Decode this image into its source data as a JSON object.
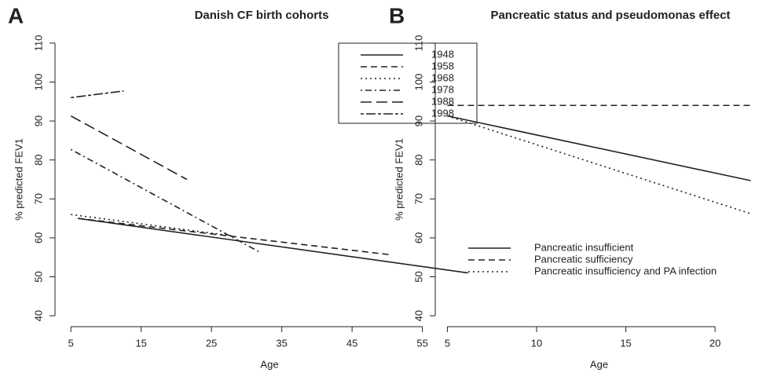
{
  "chart_data": [
    {
      "type": "line",
      "panel": "A",
      "title": "Danish CF birth cohorts",
      "xlabel": "Age",
      "ylabel": "% predicted FEV1",
      "xlim": [
        2.74,
        63.76
      ],
      "xticks": [
        5,
        15,
        25,
        35,
        45,
        55
      ],
      "ylim": [
        37.2,
        112.8
      ],
      "yticks": [
        40,
        50,
        60,
        70,
        80,
        90,
        100,
        110
      ],
      "legend": "topright",
      "legend_box": true,
      "series": [
        {
          "name": "1948",
          "color": "#222222",
          "linestyle": "solid",
          "x": [
            6,
            61.5
          ],
          "values": [
            65,
            51
          ]
        },
        {
          "name": "1958",
          "color": "#222222",
          "linestyle": "dashed",
          "x": [
            6,
            50.3
          ],
          "values": [
            65,
            55.7
          ]
        },
        {
          "name": "1968",
          "color": "#222222",
          "linestyle": "dotted",
          "x": [
            5,
            28
          ],
          "values": [
            66,
            60.5
          ]
        },
        {
          "name": "1978",
          "color": "#222222",
          "linestyle": "dotdash",
          "x": [
            5,
            32
          ],
          "values": [
            82.7,
            56.2
          ]
        },
        {
          "name": "1988",
          "color": "#222222",
          "linestyle": "longdash",
          "x": [
            5,
            21.5
          ],
          "values": [
            91.3,
            75
          ]
        },
        {
          "name": "1998",
          "color": "#222222",
          "linestyle": "twodash",
          "x": [
            5,
            12.5
          ],
          "values": [
            96,
            97.7
          ]
        }
      ]
    },
    {
      "type": "line",
      "panel": "B",
      "title": "Pancreatic status and pseudomonas effect",
      "xlabel": "Age",
      "ylabel": "% predicted FEV1",
      "xlim": [
        4.32,
        22.68
      ],
      "xticks": [
        5,
        10,
        15,
        20
      ],
      "ylim": [
        37.2,
        112.8
      ],
      "yticks": [
        40,
        50,
        60,
        70,
        80,
        90,
        100,
        110
      ],
      "legend": "bottomleft",
      "legend_box": false,
      "series": [
        {
          "name": "Pancreatic insufficient",
          "color": "#222222",
          "linestyle": "solid",
          "x": [
            5,
            22
          ],
          "values": [
            91.3,
            74.7
          ]
        },
        {
          "name": "Pancreatic sufficiency",
          "color": "#222222",
          "linestyle": "dashed",
          "x": [
            5,
            22
          ],
          "values": [
            94,
            94
          ]
        },
        {
          "name": "Pancreatic insufficiency and PA infection",
          "color": "#222222",
          "linestyle": "dotted",
          "x": [
            5,
            22
          ],
          "values": [
            91.3,
            66.2
          ]
        }
      ]
    }
  ]
}
